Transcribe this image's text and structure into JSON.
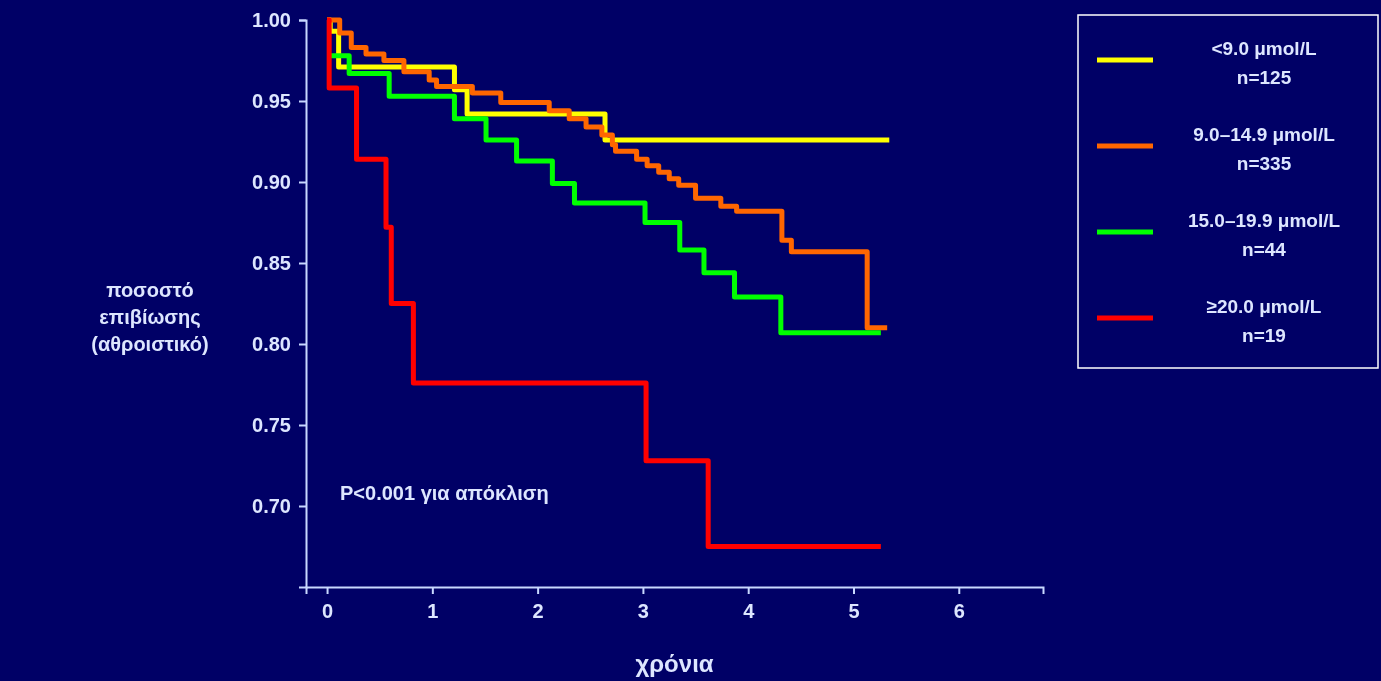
{
  "chart_data": {
    "type": "step",
    "xlabel": "χρόνια",
    "ylabel": "ποσοστό επιβίωσης (αθροιστικό)",
    "annotations": [
      "P<0.001 για απόκλιση"
    ],
    "xlim": [
      -0.2,
      6.8
    ],
    "xticks": [
      0,
      1,
      2,
      3,
      4,
      5,
      6
    ],
    "ylim": [
      0.65,
      1.0
    ],
    "yticks": [
      {
        "value": 0.7,
        "label": "0.70"
      },
      {
        "value": 0.75,
        "label": "0.75"
      },
      {
        "value": 0.8,
        "label": "0.80"
      },
      {
        "value": 0.85,
        "label": "0.85"
      },
      {
        "value": 0.9,
        "label": "0.90"
      },
      {
        "value": 0.95,
        "label": "0.95"
      },
      {
        "value": 1.0,
        "label": "1.00"
      }
    ],
    "legend": "top right",
    "grid": false,
    "series": [
      {
        "name": "<9.0 μmol/L\nn=125",
        "color": "#ffff00",
        "x": [
          0,
          0.03,
          0.11,
          1.21,
          1.33,
          2.64,
          5.34
        ],
        "values": [
          1.0,
          0.993,
          0.971,
          0.957,
          0.942,
          0.926,
          0.926
        ]
      },
      {
        "name": "9.0–14.9 μmol/L\nn=335",
        "color": "#ff6600",
        "x": [
          0,
          0.12,
          0.23,
          0.37,
          0.54,
          0.73,
          0.97,
          1.04,
          1.38,
          1.65,
          2.11,
          2.3,
          2.46,
          2.61,
          2.71,
          2.74,
          2.94,
          3.04,
          3.15,
          3.25,
          3.34,
          3.5,
          3.74,
          3.89,
          4.32,
          4.41,
          5.13,
          5.32
        ],
        "values": [
          1.0,
          0.992,
          0.983,
          0.979,
          0.975,
          0.968,
          0.963,
          0.959,
          0.955,
          0.949,
          0.944,
          0.939,
          0.934,
          0.929,
          0.923,
          0.919,
          0.914,
          0.91,
          0.906,
          0.902,
          0.898,
          0.89,
          0.885,
          0.882,
          0.864,
          0.857,
          0.81,
          0.81
        ]
      },
      {
        "name": "15.0–19.9 μmol/L\nn=44",
        "color": "#00ff00",
        "x": [
          0,
          0.21,
          0.59,
          1.21,
          1.51,
          1.8,
          2.14,
          2.35,
          3.02,
          3.35,
          3.58,
          3.87,
          4.31,
          5.26
        ],
        "values": [
          0.978,
          0.967,
          0.953,
          0.939,
          0.926,
          0.913,
          0.899,
          0.887,
          0.875,
          0.858,
          0.844,
          0.829,
          0.807,
          0.807
        ]
      },
      {
        "name": "≥20.0 μmol/L\nn=19",
        "color": "#ff0000",
        "x": [
          0,
          0.02,
          0.28,
          0.56,
          0.61,
          0.82,
          3.03,
          3.62,
          5.26
        ],
        "values": [
          1.0,
          0.958,
          0.914,
          0.872,
          0.825,
          0.776,
          0.728,
          0.675,
          0.675
        ]
      }
    ]
  }
}
